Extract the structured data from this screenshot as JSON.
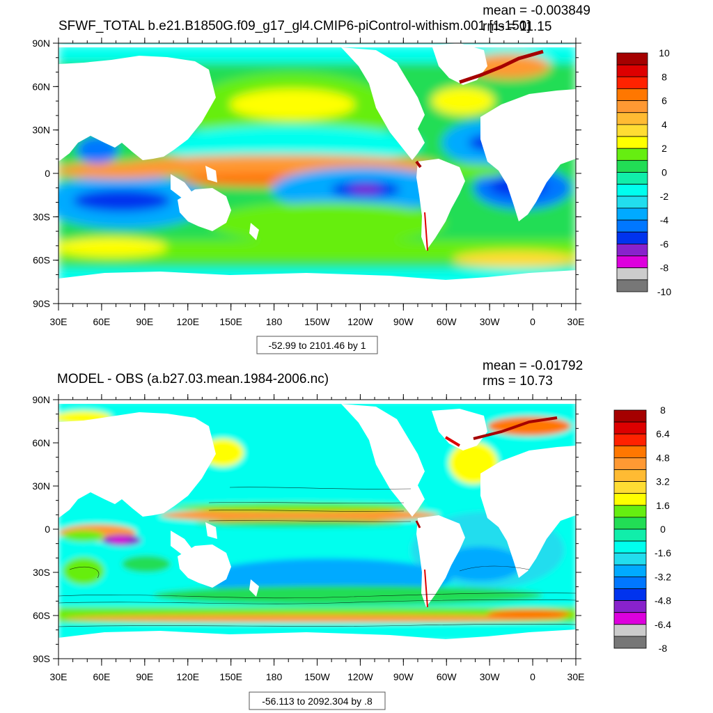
{
  "panels": [
    {
      "title": "SFWF_TOTAL b.e21.B1850G.f09_g17_gl4.CMIP6-piControl-withism.001 [1-150]",
      "mean": "mean = -0.003849",
      "rms": "rms = 11.15",
      "range_box": "-52.99 to 2101.46 by 1",
      "lat_labels": [
        "90N",
        "60N",
        "30N",
        "0",
        "30S",
        "60S",
        "90S"
      ],
      "lon_labels": [
        "30E",
        "60E",
        "90E",
        "120E",
        "150E",
        "180",
        "150W",
        "120W",
        "90W",
        "60W",
        "30W",
        "0",
        "30E"
      ],
      "colorbar": {
        "labels": [
          "10",
          "8",
          "6",
          "4",
          "2",
          "0",
          "-2",
          "-4",
          "-6",
          "-8",
          "-10"
        ],
        "colors": [
          "#a50000",
          "#dd0000",
          "#ff2200",
          "#ff7700",
          "#ff9933",
          "#ffbb33",
          "#ffdd33",
          "#ffff00",
          "#66ee11",
          "#22dd55",
          "#11eeaa",
          "#00ffee",
          "#22ddee",
          "#00aaff",
          "#0077ff",
          "#0033ee",
          "#8822cc",
          "#dd00dd",
          "#cccccc",
          "#777777"
        ]
      }
    },
    {
      "title": "MODEL - OBS (a.b27.03.mean.1984-2006.nc)",
      "mean": "mean = -0.01792",
      "rms": "rms = 10.73",
      "range_box": "-56.113 to 2092.304 by .8",
      "lat_labels": [
        "90N",
        "60N",
        "30N",
        "0",
        "30S",
        "60S",
        "90S"
      ],
      "lon_labels": [
        "30E",
        "60E",
        "90E",
        "120E",
        "150E",
        "180",
        "150W",
        "120W",
        "90W",
        "60W",
        "30W",
        "0",
        "30E"
      ],
      "colorbar": {
        "labels": [
          "8",
          "6.4",
          "4.8",
          "3.2",
          "1.6",
          "0",
          "-1.6",
          "-3.2",
          "-4.8",
          "-6.4",
          "-8"
        ],
        "colors": [
          "#a50000",
          "#dd0000",
          "#ff2200",
          "#ff7700",
          "#ff9933",
          "#ffbb33",
          "#ffdd33",
          "#ffff00",
          "#66ee11",
          "#22dd55",
          "#11eeaa",
          "#00ffee",
          "#22ddee",
          "#00aaff",
          "#0077ff",
          "#0033ee",
          "#8822cc",
          "#dd00dd",
          "#cccccc",
          "#777777"
        ]
      }
    }
  ]
}
